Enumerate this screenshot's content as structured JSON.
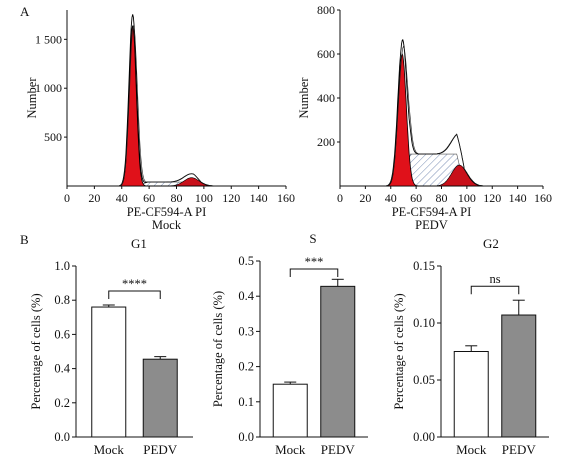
{
  "panel_labels": {
    "a": "A",
    "b": "B"
  },
  "colors": {
    "g1_fill": "#e0111a",
    "g2_fill": "#c8101a",
    "hatch": "#7a8fb5",
    "bar_mock": "#ffffff",
    "bar_pedv": "#8c8c8c",
    "line": "#111111"
  },
  "chart_data": [
    {
      "id": "histogram-mock",
      "type": "area",
      "xlabel": "PE-CF594-A PI",
      "ylabel": "Number",
      "condition": "Mock",
      "xlim": [
        0,
        160
      ],
      "ylim": [
        0,
        1800
      ],
      "xticks": [
        0,
        20,
        40,
        60,
        80,
        100,
        120,
        140,
        160
      ],
      "yticks": [
        500,
        1000,
        1500
      ],
      "ytick_labels": [
        "500",
        "1 000",
        "1 500"
      ],
      "g1_peak": {
        "center": 48,
        "height": 1640,
        "sd": 2.6
      },
      "g2_peak": {
        "center": 91,
        "height": 85,
        "sd": 5.5
      },
      "s_phase": {
        "start": 52,
        "end": 98,
        "height": 40
      }
    },
    {
      "id": "histogram-pedv",
      "type": "area",
      "xlabel": "PE-CF594-A PI",
      "ylabel": "Number",
      "condition": "PEDV",
      "xlim": [
        0,
        160
      ],
      "ylim": [
        0,
        800
      ],
      "xticks": [
        0,
        20,
        40,
        60,
        80,
        100,
        120,
        140,
        160
      ],
      "yticks": [
        200,
        400,
        600,
        800
      ],
      "ytick_labels": [
        "200",
        "400",
        "600",
        "800"
      ],
      "g1_peak": {
        "center": 49,
        "height": 600,
        "sd": 3.3
      },
      "g2_peak": {
        "center": 94,
        "height": 95,
        "sd": 6
      },
      "s_phase": {
        "start": 48,
        "end": 98,
        "height": 145
      }
    },
    {
      "id": "bar-g1",
      "type": "bar",
      "title": "G1",
      "ylabel": "Percentage of cells (%)",
      "categories": [
        "Mock",
        "PEDV"
      ],
      "values": [
        0.76,
        0.455
      ],
      "errors": [
        0.012,
        0.015
      ],
      "ylim": [
        0,
        1.0
      ],
      "yticks": [
        0,
        0.2,
        0.4,
        0.6,
        0.8,
        1.0
      ],
      "ytick_labels": [
        "0.0",
        "0.2",
        "0.4",
        "0.6",
        "0.8",
        "1.0"
      ],
      "significance": "****"
    },
    {
      "id": "bar-s",
      "type": "bar",
      "title": "S",
      "ylabel": "Percentage of cells (%)",
      "categories": [
        "Mock",
        "PEDV"
      ],
      "values": [
        0.15,
        0.428
      ],
      "errors": [
        0.006,
        0.02
      ],
      "ylim": [
        0,
        0.5
      ],
      "yticks": [
        0,
        0.1,
        0.2,
        0.3,
        0.4,
        0.5
      ],
      "ytick_labels": [
        "0.0",
        "0.1",
        "0.2",
        "0.3",
        "0.4",
        "0.5"
      ],
      "significance": "***"
    },
    {
      "id": "bar-g2",
      "type": "bar",
      "title": "G2",
      "ylabel": "Percentage of cells (%)",
      "categories": [
        "Mock",
        "PEDV"
      ],
      "values": [
        0.075,
        0.107
      ],
      "errors": [
        0.005,
        0.013
      ],
      "ylim": [
        0,
        0.15
      ],
      "yticks": [
        0,
        0.05,
        0.1,
        0.15
      ],
      "ytick_labels": [
        "0.00",
        "0.05",
        "0.10",
        "0.15"
      ],
      "significance": "ns"
    }
  ]
}
